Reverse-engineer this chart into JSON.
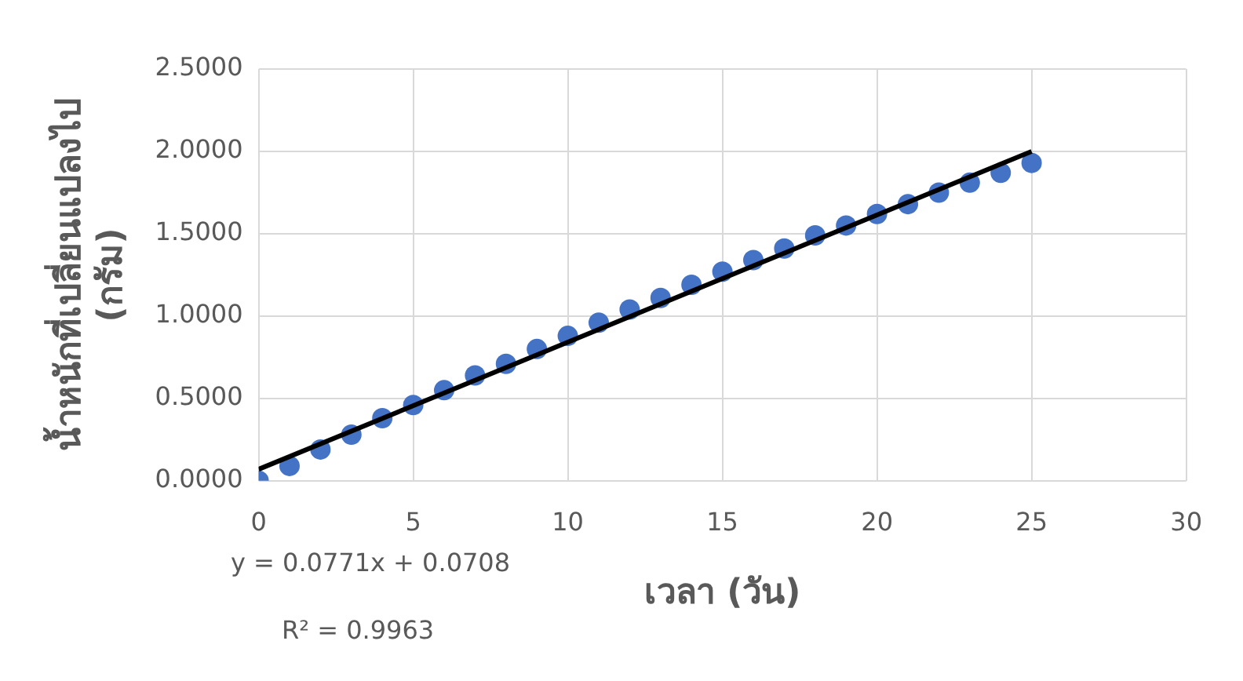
{
  "chart_data": {
    "type": "scatter",
    "xlabel": "เวลา (วัน)",
    "ylabel": "น้ำหนักที่เปลี่ยนแปลงไป\n(กรัม)",
    "x": [
      0,
      1,
      2,
      3,
      4,
      5,
      6,
      7,
      8,
      9,
      10,
      11,
      12,
      13,
      14,
      15,
      16,
      17,
      18,
      19,
      20,
      21,
      22,
      23,
      24,
      25
    ],
    "series": [
      {
        "color": "#4472c4",
        "marker": "circle",
        "values": [
          0,
          0.09,
          0.19,
          0.28,
          0.38,
          0.46,
          0.55,
          0.64,
          0.71,
          0.8,
          0.88,
          0.96,
          1.04,
          1.11,
          1.19,
          1.27,
          1.34,
          1.41,
          1.49,
          1.55,
          1.62,
          1.68,
          1.75,
          1.81,
          1.87,
          1.93
        ]
      },
      {
        "type": "line",
        "color": "#000000",
        "marker": "none",
        "x": [
          0,
          25
        ],
        "values": [
          0.07,
          2.0
        ]
      }
    ],
    "xlim": [
      0,
      30
    ],
    "xticks": [
      0,
      5,
      10,
      15,
      20,
      25,
      30
    ],
    "ylim": [
      0,
      2.5
    ],
    "yticks": [
      {
        "value": 0,
        "label": "0.0000"
      },
      {
        "value": 0.5,
        "label": "0.5000"
      },
      {
        "value": 1,
        "label": "1.0000"
      },
      {
        "value": 1.5,
        "label": "1.5000"
      },
      {
        "value": 2,
        "label": "2.0000"
      },
      {
        "value": 2.5,
        "label": "2.5000"
      }
    ],
    "grid": true,
    "legend": false,
    "annotations": [
      "y = 0.0771x + 0.0708",
      "R² = 0.9963"
    ]
  }
}
